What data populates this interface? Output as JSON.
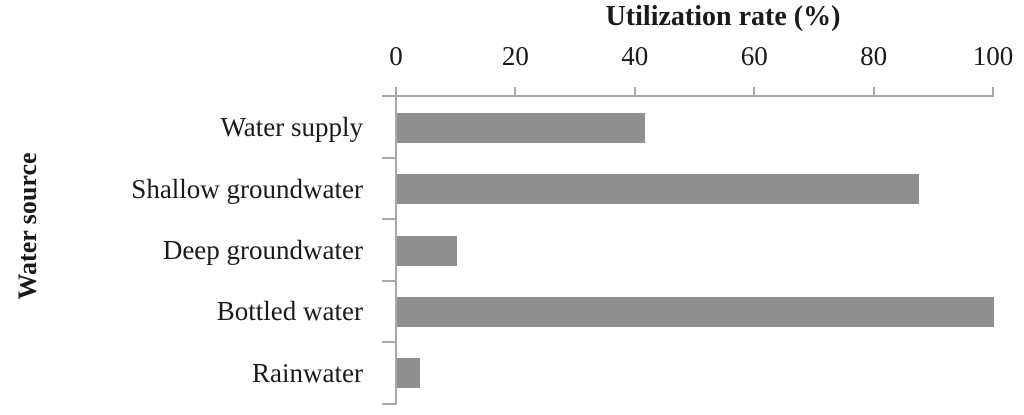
{
  "chart_data": {
    "type": "bar",
    "orientation": "horizontal",
    "title": "Utilization rate (%)",
    "xlabel": "Utilization rate (%)",
    "ylabel": "Water source",
    "categories": [
      "Water supply",
      "Shallow groundwater",
      "Deep groundwater",
      "Bottled water",
      "Rainwater"
    ],
    "values": [
      41.5,
      87.5,
      10,
      100,
      3.8
    ],
    "xlim": [
      0,
      100
    ],
    "xticks": [
      0,
      20,
      40,
      60,
      80,
      100
    ],
    "x_axis_position": "top",
    "grid": false,
    "legend": false,
    "bar_color": "#8f8f8f",
    "axis_color": "#a9a9a9",
    "text_color": "#1a1a1a",
    "background_color": "#ffffff"
  }
}
